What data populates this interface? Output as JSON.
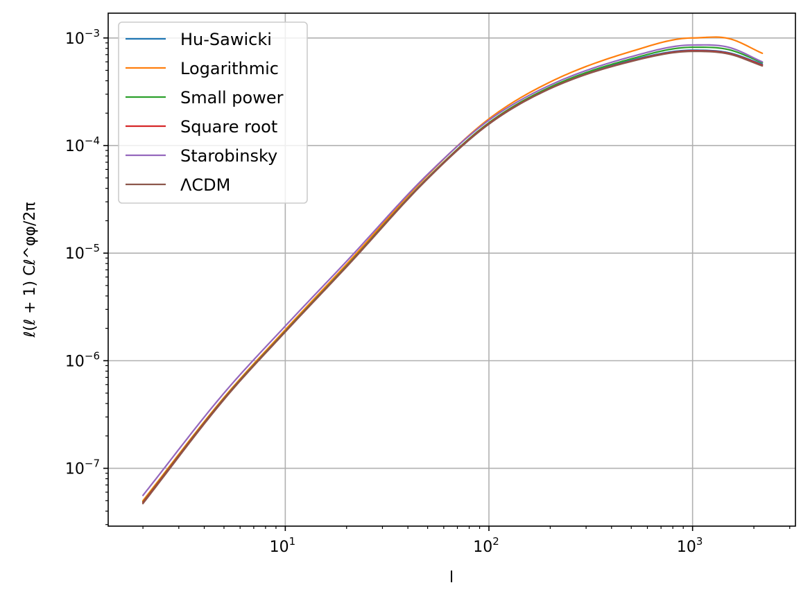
{
  "chart_data": {
    "type": "line",
    "title": "",
    "xlabel": "l",
    "ylabel": "ℓ(ℓ + 1) Cℓ^φφ/2π",
    "xscale": "log",
    "yscale": "log",
    "xlim": [
      1.35,
      3200
    ],
    "ylim": [
      2.9e-08,
      0.0017
    ],
    "grid": true,
    "legend_position": "top-left",
    "x_tick_labels": [
      {
        "value": 10,
        "base": "10",
        "exp": "1"
      },
      {
        "value": 100,
        "base": "10",
        "exp": "2"
      },
      {
        "value": 1000,
        "base": "10",
        "exp": "3"
      }
    ],
    "y_tick_labels": [
      {
        "value": 1e-07,
        "base": "10",
        "exp": "−7"
      },
      {
        "value": 1e-06,
        "base": "10",
        "exp": "−6"
      },
      {
        "value": 1e-05,
        "base": "10",
        "exp": "−5"
      },
      {
        "value": 0.0001,
        "base": "10",
        "exp": "−4"
      },
      {
        "value": 0.001,
        "base": "10",
        "exp": "−3"
      }
    ],
    "x": [
      2,
      5,
      10,
      20,
      50,
      100,
      200,
      500,
      1000,
      1500,
      2200
    ],
    "series": [
      {
        "name": "Hu-Sawicki",
        "color": "#1f77b4",
        "values": [
          4.9e-08,
          4.45e-07,
          1.88e-06,
          7.6e-06,
          5e-05,
          0.000162,
          0.000345,
          0.00062,
          0.00077,
          0.00073,
          0.00057
        ]
      },
      {
        "name": "Logarithmic",
        "color": "#ff7f0e",
        "values": [
          5e-08,
          4.55e-07,
          1.94e-06,
          7.9e-06,
          5.3e-05,
          0.000177,
          0.00039,
          0.00075,
          0.001,
          0.00099,
          0.00072
        ]
      },
      {
        "name": "Small power",
        "color": "#2ca02c",
        "values": [
          4.85e-08,
          4.45e-07,
          1.88e-06,
          7.6e-06,
          5e-05,
          0.000163,
          0.00035,
          0.00064,
          0.00082,
          0.00078,
          0.00059
        ]
      },
      {
        "name": "Square root",
        "color": "#d62728",
        "values": [
          4.8e-08,
          4.4e-07,
          1.86e-06,
          7.5e-06,
          4.95e-05,
          0.00016,
          0.00034,
          0.00061,
          0.00076,
          0.00072,
          0.00056
        ]
      },
      {
        "name": "Starobinsky",
        "color": "#9467bd",
        "values": [
          5.6e-08,
          5e-07,
          2.1e-06,
          8.4e-06,
          5.4e-05,
          0.000172,
          0.000365,
          0.00067,
          0.00086,
          0.00082,
          0.0006
        ]
      },
      {
        "name": "ΛCDM",
        "color": "#8c564b",
        "values": [
          4.7e-08,
          4.35e-07,
          1.85e-06,
          7.45e-06,
          4.9e-05,
          0.000158,
          0.000338,
          0.000605,
          0.00075,
          0.00071,
          0.00055
        ]
      }
    ]
  }
}
